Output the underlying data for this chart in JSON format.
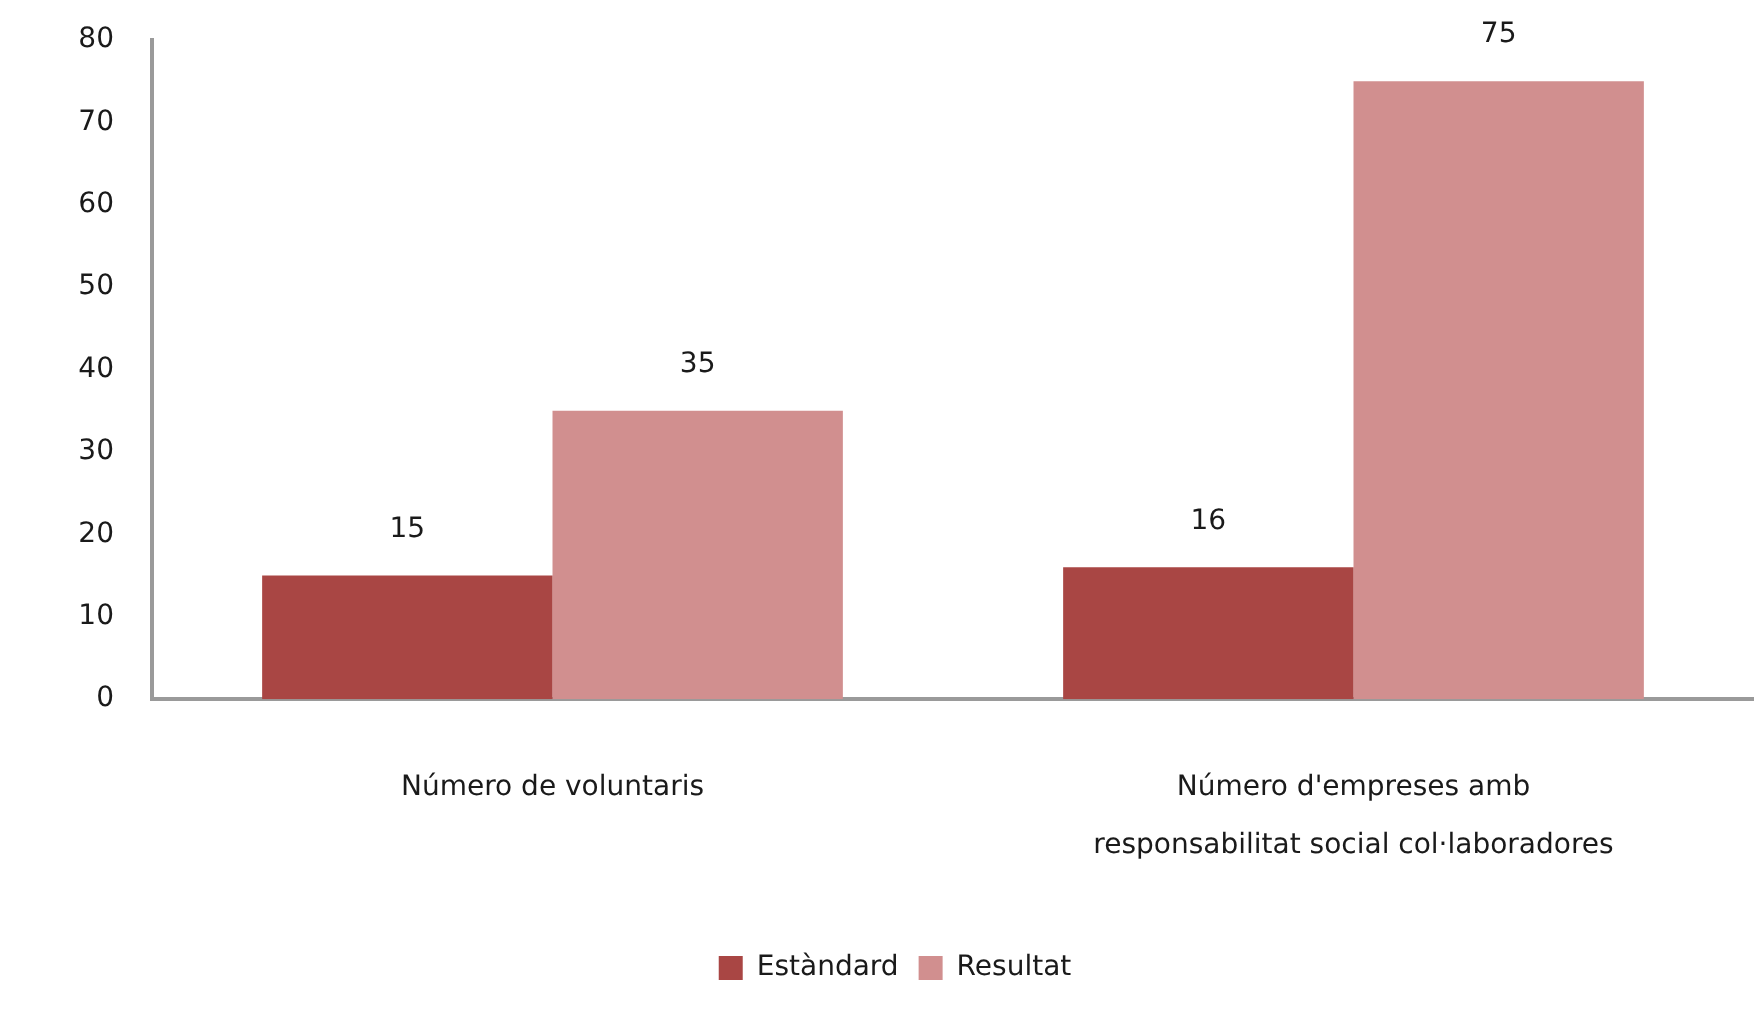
{
  "chart_data": {
    "type": "bar",
    "categories": [
      "Número de voluntaris",
      "Número d'empreses amb responsabilitat social col·laboradores"
    ],
    "series": [
      {
        "name": "Estàndard",
        "color": "#a94644",
        "values": [
          15,
          16
        ]
      },
      {
        "name": "Resultat",
        "color": "#d18f8f",
        "values": [
          35,
          75
        ]
      }
    ],
    "ylim": [
      0,
      80
    ],
    "yticks": [
      0,
      10,
      20,
      30,
      40,
      50,
      60,
      70,
      80
    ],
    "grid": false,
    "legend": "bottom",
    "data_labels": true
  }
}
